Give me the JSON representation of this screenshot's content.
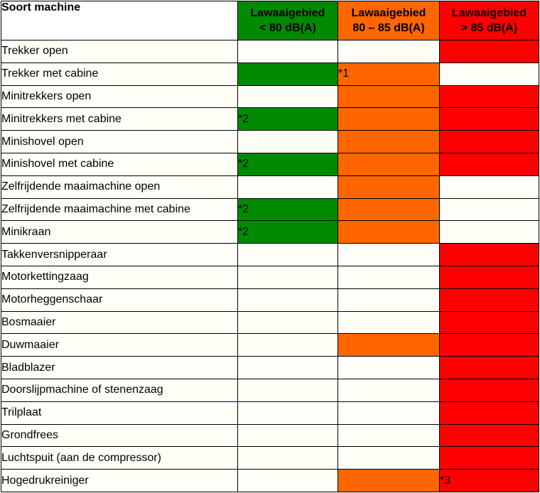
{
  "table": {
    "header": {
      "machine": "Soort machine",
      "zones": [
        {
          "line1": "Lawaaigebied",
          "line2": "< 80 dB(A)",
          "color": "#008a00"
        },
        {
          "line1": "Lawaaigebied",
          "line2": "80 – 85 dB(A)",
          "color": "#ff6600"
        },
        {
          "line1": "Lawaaigebied",
          "line2": "> 85 dB(A)",
          "color": "#ff0000"
        }
      ]
    },
    "rows": [
      {
        "machine": "Trekker open",
        "cells": [
          {
            "fill": "empty",
            "note": ""
          },
          {
            "fill": "empty",
            "note": ""
          },
          {
            "fill": "red",
            "note": ""
          }
        ]
      },
      {
        "machine": "Trekker met cabine",
        "cells": [
          {
            "fill": "green",
            "note": ""
          },
          {
            "fill": "orange",
            "note": "*1"
          },
          {
            "fill": "empty",
            "note": ""
          }
        ]
      },
      {
        "machine": "Minitrekkers open",
        "cells": [
          {
            "fill": "empty",
            "note": ""
          },
          {
            "fill": "orange",
            "note": ""
          },
          {
            "fill": "red",
            "note": ""
          }
        ]
      },
      {
        "machine": "Minitrekkers met cabine",
        "cells": [
          {
            "fill": "green",
            "note": "*2"
          },
          {
            "fill": "orange",
            "note": ""
          },
          {
            "fill": "red",
            "note": ""
          }
        ]
      },
      {
        "machine": "Minishovel open",
        "cells": [
          {
            "fill": "empty",
            "note": ""
          },
          {
            "fill": "orange",
            "note": ""
          },
          {
            "fill": "red",
            "note": ""
          }
        ]
      },
      {
        "machine": "Minishovel met cabine",
        "cells": [
          {
            "fill": "green",
            "note": "*2"
          },
          {
            "fill": "orange",
            "note": ""
          },
          {
            "fill": "red",
            "note": ""
          }
        ]
      },
      {
        "machine": "Zelfrijdende maaimachine open",
        "cells": [
          {
            "fill": "empty",
            "note": ""
          },
          {
            "fill": "orange",
            "note": ""
          },
          {
            "fill": "empty",
            "note": ""
          }
        ]
      },
      {
        "machine": "Zelfrijdende maaimachine met cabine",
        "cells": [
          {
            "fill": "green",
            "note": "*2"
          },
          {
            "fill": "orange",
            "note": ""
          },
          {
            "fill": "empty",
            "note": ""
          }
        ]
      },
      {
        "machine": "Minikraan",
        "cells": [
          {
            "fill": "green",
            "note": "*2"
          },
          {
            "fill": "orange",
            "note": ""
          },
          {
            "fill": "empty",
            "note": ""
          }
        ]
      },
      {
        "machine": "Takkenversnipperaar",
        "cells": [
          {
            "fill": "empty",
            "note": ""
          },
          {
            "fill": "empty",
            "note": ""
          },
          {
            "fill": "red",
            "note": ""
          }
        ]
      },
      {
        "machine": "Motorkettingzaag",
        "cells": [
          {
            "fill": "empty",
            "note": ""
          },
          {
            "fill": "empty",
            "note": ""
          },
          {
            "fill": "red",
            "note": ""
          }
        ]
      },
      {
        "machine": "Motorheggenschaar",
        "cells": [
          {
            "fill": "empty",
            "note": ""
          },
          {
            "fill": "empty",
            "note": ""
          },
          {
            "fill": "red",
            "note": ""
          }
        ]
      },
      {
        "machine": "Bosmaaier",
        "cells": [
          {
            "fill": "empty",
            "note": ""
          },
          {
            "fill": "empty",
            "note": ""
          },
          {
            "fill": "red",
            "note": ""
          }
        ]
      },
      {
        "machine": "Duwmaaier",
        "cells": [
          {
            "fill": "empty",
            "note": ""
          },
          {
            "fill": "orange",
            "note": ""
          },
          {
            "fill": "red",
            "note": ""
          }
        ]
      },
      {
        "machine": "Bladblazer",
        "cells": [
          {
            "fill": "empty",
            "note": ""
          },
          {
            "fill": "empty",
            "note": ""
          },
          {
            "fill": "red",
            "note": ""
          }
        ]
      },
      {
        "machine": "Doorslijpmachine of stenenzaag",
        "cells": [
          {
            "fill": "empty",
            "note": ""
          },
          {
            "fill": "empty",
            "note": ""
          },
          {
            "fill": "red",
            "note": ""
          }
        ]
      },
      {
        "machine": "Trilplaat",
        "cells": [
          {
            "fill": "empty",
            "note": ""
          },
          {
            "fill": "empty",
            "note": ""
          },
          {
            "fill": "red",
            "note": ""
          }
        ]
      },
      {
        "machine": "Grondfrees",
        "cells": [
          {
            "fill": "empty",
            "note": ""
          },
          {
            "fill": "empty",
            "note": ""
          },
          {
            "fill": "red",
            "note": ""
          }
        ]
      },
      {
        "machine": "Luchtspuit (aan de compressor)",
        "cells": [
          {
            "fill": "empty",
            "note": ""
          },
          {
            "fill": "empty",
            "note": ""
          },
          {
            "fill": "red",
            "note": ""
          }
        ]
      },
      {
        "machine": "Hogedrukreiniger",
        "cells": [
          {
            "fill": "empty",
            "note": ""
          },
          {
            "fill": "orange",
            "note": ""
          },
          {
            "fill": "red",
            "note": "*3"
          }
        ]
      }
    ]
  }
}
